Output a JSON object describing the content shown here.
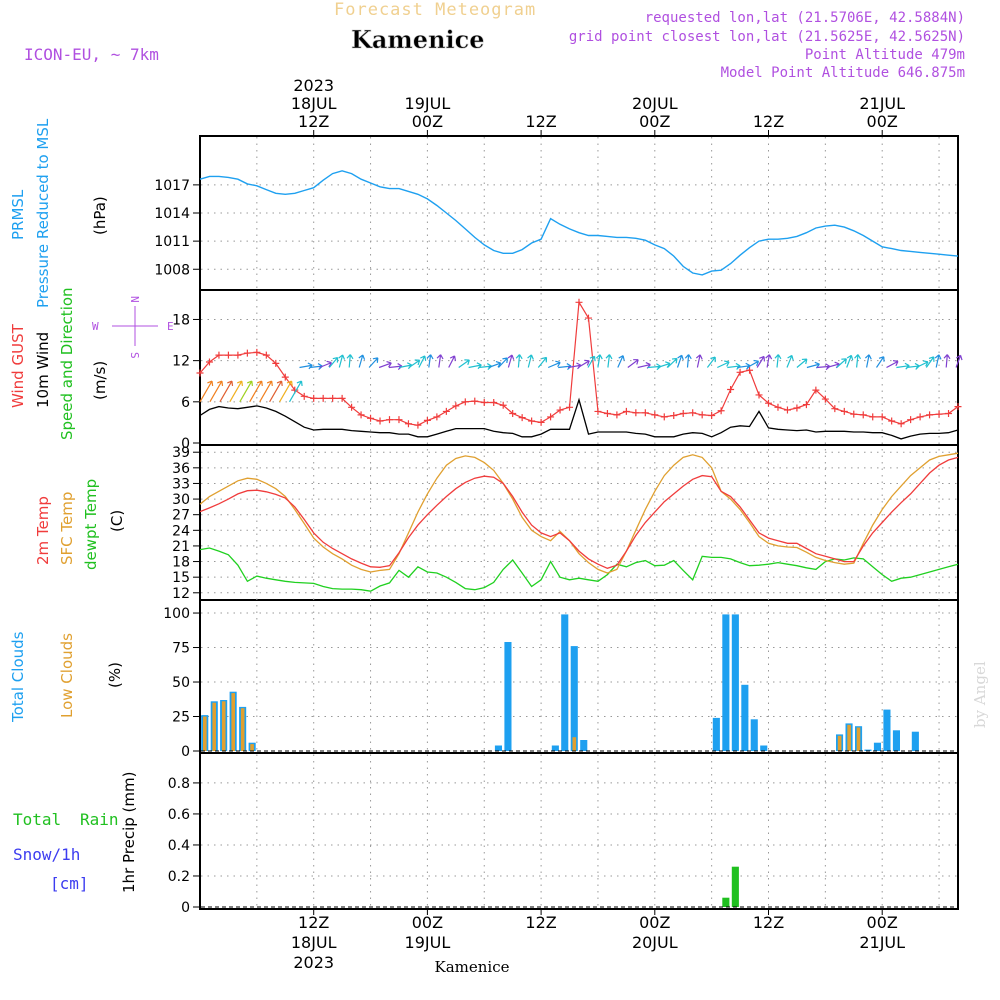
{
  "header": {
    "brand": "Forecast Meteogram",
    "model": "ICON-EU, ~ 7km",
    "location": "Kamenice",
    "requested": "requested lon,lat (21.5706E, 42.5884N)",
    "gridpoint": "grid point closest lon,lat (21.5625E, 42.5625N)",
    "altitude": "Point Altitude 479m",
    "model_altitude": "Model Point Altitude 646.875m",
    "credit": "by Angel",
    "footer_location": "Kamenice"
  },
  "time_axis": {
    "top": [
      {
        "lines": [
          "2023",
          "18JUL",
          "12Z"
        ],
        "hour": 12
      },
      {
        "lines": [
          "19JUL",
          "00Z"
        ],
        "hour": 24
      },
      {
        "lines": [
          "12Z"
        ],
        "hour": 36
      },
      {
        "lines": [
          "20JUL",
          "00Z"
        ],
        "hour": 48
      },
      {
        "lines": [
          "12Z"
        ],
        "hour": 60
      },
      {
        "lines": [
          "21JUL",
          "00Z"
        ],
        "hour": 72
      }
    ],
    "bottom": [
      {
        "lines": [
          "12Z",
          "18JUL",
          "2023"
        ],
        "hour": 12
      },
      {
        "lines": [
          "00Z",
          "19JUL"
        ],
        "hour": 24
      },
      {
        "lines": [
          "12Z"
        ],
        "hour": 36
      },
      {
        "lines": [
          "00Z",
          "20JUL"
        ],
        "hour": 48
      },
      {
        "lines": [
          "12Z"
        ],
        "hour": 60
      },
      {
        "lines": [
          "00Z",
          "21JUL"
        ],
        "hour": 72
      }
    ]
  },
  "panel_labels": {
    "pressure": [
      "PRMSL",
      "Pressure Reduced to MSL",
      "(hPa)"
    ],
    "wind": [
      "Wind GUST",
      "10m Wind",
      "Speed and Direction",
      "(m/s)"
    ],
    "compass": {
      "n": "N",
      "s": "S",
      "w": "W",
      "e": "E"
    },
    "temp": [
      "2m Temp",
      "SFC Temp",
      "dewpt Temp",
      "(C)"
    ],
    "clouds": [
      "Total Clouds",
      "Low Clouds",
      "(%)"
    ],
    "precip": [
      "Total",
      "Rain",
      "Snow/1h",
      "[cm]",
      "1hr Precip (mm)"
    ]
  },
  "colors": {
    "pressure": "#1ea0f0",
    "gust": "#f03c3c",
    "wind": "#000000",
    "t2m": "#f03c3c",
    "sfc": "#e0a030",
    "dewpt": "#20d020",
    "total_clouds": "#1ea0f0",
    "low_clouds": "#e0a030",
    "rain": "#20c020",
    "snow": "#3c3cf0",
    "header_purple": "#b050e0",
    "brand": "#f0d090"
  },
  "chart_data": [
    {
      "type": "line",
      "id": "pressure",
      "ylabel": "(hPa)",
      "ylim": [
        1006,
        1022
      ],
      "yticks": [
        1008,
        1011,
        1014,
        1017
      ],
      "x_hours": [
        0,
        1,
        2,
        3,
        4,
        5,
        6,
        7,
        8,
        9,
        10,
        11,
        12,
        13,
        14,
        15,
        16,
        17,
        18,
        19,
        20,
        21,
        22,
        23,
        24,
        25,
        26,
        27,
        28,
        29,
        30,
        31,
        32,
        33,
        34,
        35,
        36,
        37,
        38,
        39,
        40,
        41,
        42,
        43,
        44,
        45,
        46,
        47,
        48,
        49,
        50,
        51,
        52,
        53,
        54,
        55,
        56,
        57,
        58,
        59,
        60,
        61,
        62,
        63,
        64,
        65,
        66,
        67,
        68,
        69,
        70,
        71,
        72,
        73,
        74,
        75,
        76,
        77,
        78,
        79,
        80
      ],
      "series": [
        {
          "values": [
            1017.6,
            1017.9,
            1017.9,
            1017.8,
            1017.6,
            1017.1,
            1016.9,
            1016.5,
            1016.1,
            1016.0,
            1016.1,
            1016.4,
            1016.7,
            1017.5,
            1018.2,
            1018.5,
            1018.2,
            1017.6,
            1017.2,
            1016.8,
            1016.6,
            1016.6,
            1016.3,
            1016.0,
            1015.5,
            1014.8,
            1014.0,
            1013.2,
            1012.3,
            1011.4,
            1010.6,
            1010.0,
            1009.7,
            1009.7,
            1010.1,
            1010.8,
            1011.2,
            1013.4,
            1012.8,
            1012.3,
            1011.9,
            1011.6,
            1011.6,
            1011.5,
            1011.4,
            1011.4,
            1011.3,
            1011.1,
            1010.6,
            1010.2,
            1009.4,
            1008.3,
            1007.6,
            1007.4,
            1007.8,
            1007.9,
            1008.6,
            1009.5,
            1010.3,
            1011.0,
            1011.2,
            1011.2,
            1011.3,
            1011.5,
            1011.9,
            1012.4,
            1012.6,
            1012.7,
            1012.5,
            1012.1,
            1011.6,
            1011.0,
            1010.4,
            1010.2,
            1010.0,
            1009.9,
            1009.8,
            1009.7,
            1009.6,
            1009.5,
            1009.4
          ]
        }
      ]
    },
    {
      "type": "line",
      "id": "wind",
      "ylabel": "(m/s)",
      "ylim": [
        0,
        22
      ],
      "yticks": [
        0,
        6,
        12,
        18
      ],
      "x_hours": [
        0,
        1,
        2,
        3,
        4,
        5,
        6,
        7,
        8,
        9,
        10,
        11,
        12,
        13,
        14,
        15,
        16,
        17,
        18,
        19,
        20,
        21,
        22,
        23,
        24,
        25,
        26,
        27,
        28,
        29,
        30,
        31,
        32,
        33,
        34,
        35,
        36,
        37,
        38,
        39,
        40,
        41,
        42,
        43,
        44,
        45,
        46,
        47,
        48,
        49,
        50,
        51,
        52,
        53,
        54,
        55,
        56,
        57,
        58,
        59,
        60,
        61,
        62,
        63,
        64,
        65,
        66,
        67,
        68,
        69,
        70,
        71,
        72,
        73,
        74,
        75,
        76,
        77,
        78,
        79,
        80
      ],
      "series": [
        {
          "name": "Wind GUST",
          "values": [
            10.2,
            11.8,
            12.8,
            12.8,
            12.8,
            13.1,
            13.2,
            12.8,
            11.6,
            9.6,
            7.7,
            6.8,
            6.5,
            6.5,
            6.5,
            6.5,
            5.2,
            4.1,
            3.6,
            3.2,
            3.4,
            3.4,
            2.8,
            2.6,
            3.3,
            3.8,
            4.6,
            5.4,
            6.0,
            6.1,
            5.9,
            5.9,
            5.5,
            4.3,
            3.7,
            3.2,
            3.0,
            3.8,
            4.8,
            5.2,
            20.5,
            18.2,
            4.6,
            4.3,
            4.1,
            4.6,
            4.4,
            4.4,
            4.1,
            3.8,
            4.0,
            4.3,
            4.4,
            4.1,
            4.0,
            4.7,
            7.8,
            10.3,
            10.6,
            7.0,
            5.8,
            5.2,
            4.8,
            5.1,
            5.6,
            7.7,
            6.4,
            5.0,
            4.6,
            4.2,
            4.1,
            3.8,
            3.8,
            3.2,
            2.8,
            3.4,
            3.8,
            4.1,
            4.2,
            4.3,
            5.3
          ]
        },
        {
          "name": "10m Wind",
          "values": [
            4.0,
            4.9,
            5.3,
            5.1,
            5.0,
            5.2,
            5.4,
            5.1,
            4.6,
            3.9,
            3.1,
            2.3,
            1.9,
            2.0,
            2.0,
            2.0,
            1.8,
            1.7,
            1.6,
            1.5,
            1.5,
            1.3,
            1.3,
            0.9,
            0.9,
            1.3,
            1.7,
            2.1,
            2.1,
            2.1,
            2.1,
            1.7,
            1.5,
            1.4,
            0.9,
            0.9,
            1.3,
            2.0,
            2.0,
            2.0,
            6.3,
            1.3,
            1.6,
            1.6,
            1.6,
            1.6,
            1.4,
            1.3,
            0.9,
            0.9,
            0.9,
            1.3,
            1.5,
            1.4,
            0.9,
            1.5,
            2.3,
            2.5,
            2.4,
            4.6,
            2.2,
            2.0,
            1.9,
            1.8,
            1.9,
            1.6,
            1.7,
            1.7,
            1.7,
            1.6,
            1.6,
            1.5,
            1.5,
            1.1,
            0.6,
            1.0,
            1.3,
            1.4,
            1.4,
            1.5,
            1.9
          ]
        }
      ]
    },
    {
      "type": "line",
      "id": "temp",
      "ylabel": "(C)",
      "ylim": [
        11,
        40
      ],
      "yticks": [
        12,
        15,
        18,
        21,
        24,
        27,
        30,
        33,
        36,
        39
      ],
      "x_hours": [
        0,
        1,
        2,
        3,
        4,
        5,
        6,
        7,
        8,
        9,
        10,
        11,
        12,
        13,
        14,
        15,
        16,
        17,
        18,
        19,
        20,
        21,
        22,
        23,
        24,
        25,
        26,
        27,
        28,
        29,
        30,
        31,
        32,
        33,
        34,
        35,
        36,
        37,
        38,
        39,
        40,
        41,
        42,
        43,
        44,
        45,
        46,
        47,
        48,
        49,
        50,
        51,
        52,
        53,
        54,
        55,
        56,
        57,
        58,
        59,
        60,
        61,
        62,
        63,
        64,
        65,
        66,
        67,
        68,
        69,
        70,
        71,
        72,
        73,
        74,
        75,
        76,
        77,
        78,
        79,
        80
      ],
      "series": [
        {
          "name": "2m Temp",
          "values": [
            27.6,
            28.3,
            29.1,
            30.0,
            31.0,
            31.6,
            31.7,
            31.4,
            30.9,
            30.2,
            28.5,
            26.1,
            23.5,
            21.7,
            20.5,
            19.5,
            18.5,
            17.7,
            17.0,
            16.9,
            17.2,
            19.7,
            22.6,
            25.0,
            27.0,
            28.8,
            30.5,
            32.0,
            33.2,
            34.0,
            34.4,
            34.2,
            33.0,
            30.5,
            27.5,
            25.0,
            23.5,
            22.8,
            23.5,
            22.0,
            20.0,
            18.5,
            17.5,
            16.7,
            17.3,
            20.0,
            23.0,
            25.5,
            27.5,
            29.5,
            31.0,
            32.5,
            33.8,
            34.5,
            34.3,
            31.5,
            30.5,
            28.5,
            26.0,
            23.5,
            22.5,
            22.0,
            21.5,
            21.5,
            20.5,
            19.5,
            19.0,
            18.5,
            18.0,
            18.0,
            21.0,
            23.5,
            25.5,
            27.5,
            29.3,
            31.0,
            33.0,
            35.0,
            36.5,
            37.5,
            38.0
          ]
        },
        {
          "name": "SFC Temp",
          "values": [
            29.0,
            30.5,
            31.5,
            32.5,
            33.5,
            34.0,
            33.8,
            33.0,
            32.0,
            30.5,
            28.0,
            25.3,
            22.5,
            20.8,
            19.5,
            18.5,
            17.3,
            16.5,
            16.0,
            16.3,
            16.5,
            19.5,
            23.5,
            27.5,
            31.0,
            34.0,
            36.5,
            37.8,
            38.3,
            38.0,
            37.0,
            35.5,
            33.0,
            30.0,
            26.5,
            24.0,
            22.8,
            22.0,
            23.8,
            22.0,
            19.5,
            17.8,
            16.5,
            15.8,
            16.5,
            20.0,
            24.0,
            28.0,
            31.5,
            34.5,
            36.5,
            38.0,
            38.5,
            38.0,
            36.0,
            31.5,
            30.0,
            28.0,
            25.5,
            22.8,
            21.5,
            21.0,
            20.8,
            20.7,
            19.8,
            18.8,
            18.2,
            17.8,
            17.5,
            17.7,
            21.5,
            25.0,
            28.0,
            30.5,
            32.5,
            34.5,
            36.0,
            37.5,
            38.2,
            38.5,
            38.8
          ]
        },
        {
          "name": "dewpt Temp",
          "values": [
            20.3,
            20.6,
            20.0,
            19.3,
            17.3,
            14.2,
            15.2,
            14.8,
            14.5,
            14.2,
            14.0,
            13.9,
            13.8,
            13.2,
            12.8,
            12.7,
            12.7,
            12.6,
            12.3,
            13.3,
            13.9,
            16.3,
            15.0,
            17.0,
            16.0,
            15.8,
            15.0,
            14.0,
            12.8,
            12.6,
            13.0,
            14.0,
            16.5,
            18.3,
            15.8,
            13.2,
            14.5,
            18.0,
            15.0,
            14.5,
            14.8,
            14.5,
            14.2,
            15.5,
            17.5,
            17.0,
            17.8,
            18.2,
            17.2,
            17.3,
            18.2,
            16.3,
            14.5,
            19.0,
            18.8,
            18.8,
            18.5,
            17.8,
            17.2,
            17.3,
            17.5,
            17.8,
            17.5,
            17.2,
            16.8,
            16.5,
            18.0,
            18.5,
            18.3,
            18.7,
            18.5,
            17.0,
            15.5,
            14.2,
            14.8,
            15.0,
            15.5,
            16.0,
            16.5,
            17.0,
            17.5
          ]
        }
      ]
    },
    {
      "type": "bar",
      "id": "clouds",
      "ylabel": "(%)",
      "ylim": [
        0,
        108
      ],
      "yticks": [
        0,
        25,
        50,
        75,
        100
      ],
      "series": [
        {
          "name": "Total Clouds",
          "x_hours": [
            0,
            1,
            2,
            3,
            4,
            5,
            31,
            32,
            37,
            38,
            39,
            40,
            54,
            55,
            56,
            57,
            58,
            59,
            67,
            68,
            69,
            70,
            71,
            72,
            73,
            75
          ],
          "values": [
            26,
            36,
            37,
            43,
            32,
            6,
            4,
            79,
            4,
            99,
            76,
            8,
            24,
            99,
            99,
            48,
            23,
            4,
            12,
            20,
            18,
            1,
            6,
            30,
            15,
            14
          ]
        },
        {
          "name": "Low Clouds",
          "x_hours": [
            0,
            1,
            2,
            3,
            4,
            5,
            39,
            67,
            68,
            69
          ],
          "values": [
            25,
            35,
            36,
            42,
            31,
            5,
            10,
            11,
            19,
            17
          ]
        }
      ]
    },
    {
      "type": "bar",
      "id": "precip",
      "ylabel": "1hr Precip (mm)",
      "ylim": [
        0,
        0.98
      ],
      "yticks": [
        0,
        0.2,
        0.4,
        0.6,
        0.8
      ],
      "series": [
        {
          "name": "Total Rain",
          "x_hours": [
            55,
            56
          ],
          "values": [
            0.06,
            0.26
          ]
        }
      ]
    }
  ]
}
